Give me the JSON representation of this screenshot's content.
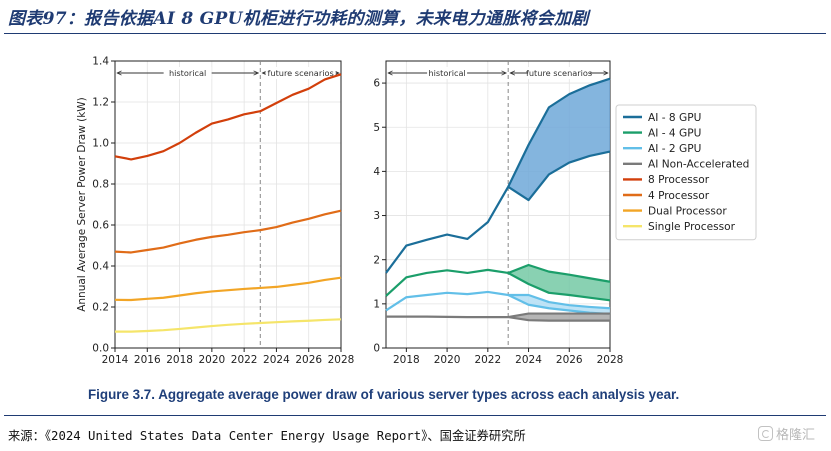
{
  "header": {
    "title": "图表97：报告依据AI 8 GPU机柜进行功耗的测算，未来电力通胀将会加剧"
  },
  "caption": "Figure 3.7.  Aggregate average power draw of various server types across each analysis year.",
  "footer": {
    "source": "来源：《2024 United States Data Center Energy Usage Report》、国金证券研究所",
    "watermark": "格隆汇"
  },
  "chart_data": [
    {
      "type": "line",
      "ylabel": "Annual Average Server Power Draw (kW)",
      "xlabel": "",
      "xlim": [
        2014,
        2028
      ],
      "ylim": [
        0,
        1.4
      ],
      "xticks": [
        2014,
        2016,
        2018,
        2020,
        2022,
        2024,
        2026,
        2028
      ],
      "yticks": [
        0.0,
        0.2,
        0.4,
        0.6,
        0.8,
        1.0,
        1.2,
        1.4
      ],
      "divider_x": 2023,
      "annotations": {
        "historical": "historical",
        "future": "future scenarios"
      },
      "grid": true,
      "x": [
        2014,
        2015,
        2016,
        2017,
        2018,
        2019,
        2020,
        2021,
        2022,
        2023,
        2024,
        2025,
        2026,
        2027,
        2028
      ],
      "series": [
        {
          "name": "8 Processor",
          "color": "#d23f0b",
          "values": [
            0.935,
            0.92,
            0.937,
            0.96,
            1.0,
            1.05,
            1.095,
            1.115,
            1.14,
            1.155,
            1.195,
            1.235,
            1.265,
            1.31,
            1.335
          ]
        },
        {
          "name": "4 Processor",
          "color": "#e06c18",
          "values": [
            0.47,
            0.466,
            0.478,
            0.49,
            0.51,
            0.528,
            0.542,
            0.552,
            0.565,
            0.575,
            0.59,
            0.612,
            0.63,
            0.652,
            0.67
          ]
        },
        {
          "name": "Dual Processor",
          "color": "#f2a526",
          "values": [
            0.235,
            0.234,
            0.24,
            0.245,
            0.256,
            0.267,
            0.276,
            0.282,
            0.288,
            0.293,
            0.298,
            0.308,
            0.318,
            0.332,
            0.343
          ]
        },
        {
          "name": "Single Processor",
          "color": "#f5e56a",
          "values": [
            0.08,
            0.08,
            0.083,
            0.087,
            0.093,
            0.1,
            0.107,
            0.113,
            0.118,
            0.122,
            0.126,
            0.13,
            0.133,
            0.137,
            0.14
          ]
        }
      ]
    },
    {
      "type": "line",
      "ylabel": "",
      "xlabel": "",
      "xlim": [
        2017,
        2028
      ],
      "ylim": [
        0,
        6.5
      ],
      "xticks": [
        2018,
        2020,
        2022,
        2024,
        2026,
        2028
      ],
      "yticks": [
        0,
        1,
        2,
        3,
        4,
        5,
        6
      ],
      "divider_x": 2023,
      "annotations": {
        "historical": "historical",
        "future": "future scenarios"
      },
      "grid": true,
      "legend": "right",
      "historical_x": [
        2017,
        2018,
        2019,
        2020,
        2021,
        2022,
        2023
      ],
      "future_x": [
        2023,
        2024,
        2025,
        2026,
        2027,
        2028
      ],
      "series": [
        {
          "name": "AI - 8 GPU",
          "color": "#1b6e99",
          "fill": "#6fa8d8",
          "historical": [
            1.7,
            2.32,
            2.45,
            2.57,
            2.47,
            2.85,
            3.65
          ],
          "upper": [
            3.65,
            4.6,
            5.45,
            5.75,
            5.95,
            6.1
          ],
          "lower": [
            3.65,
            3.35,
            3.93,
            4.2,
            4.35,
            4.45
          ]
        },
        {
          "name": "AI - 4 GPU",
          "color": "#1b9e6a",
          "fill": "#74c9a4",
          "historical": [
            1.18,
            1.6,
            1.7,
            1.76,
            1.7,
            1.77,
            1.7
          ],
          "upper": [
            1.7,
            1.88,
            1.73,
            1.66,
            1.58,
            1.5
          ],
          "lower": [
            1.7,
            1.45,
            1.25,
            1.2,
            1.14,
            1.08
          ]
        },
        {
          "name": "AI - 2 GPU",
          "color": "#62bfe8",
          "fill": "#b3def5",
          "historical": [
            0.85,
            1.15,
            1.2,
            1.25,
            1.22,
            1.27,
            1.2
          ],
          "upper": [
            1.2,
            1.2,
            1.04,
            0.97,
            0.93,
            0.9
          ],
          "lower": [
            1.2,
            0.98,
            0.9,
            0.85,
            0.8,
            0.77
          ]
        },
        {
          "name": "AI Non-Accelerated",
          "color": "#7a7a7a",
          "fill": "#a8a8a8",
          "historical": [
            0.71,
            0.71,
            0.71,
            0.705,
            0.7,
            0.7,
            0.7
          ],
          "upper": [
            0.7,
            0.78,
            0.78,
            0.78,
            0.78,
            0.78
          ],
          "lower": [
            0.7,
            0.63,
            0.62,
            0.62,
            0.62,
            0.62
          ]
        }
      ],
      "legend_entries": [
        {
          "name": "AI - 8 GPU",
          "color": "#1b6e99"
        },
        {
          "name": "AI - 4 GPU",
          "color": "#1b9e6a"
        },
        {
          "name": "AI - 2 GPU",
          "color": "#62bfe8"
        },
        {
          "name": "AI Non-Accelerated",
          "color": "#7a7a7a"
        },
        {
          "name": "8 Processor",
          "color": "#d23f0b"
        },
        {
          "name": "4 Processor",
          "color": "#e06c18"
        },
        {
          "name": "Dual Processor",
          "color": "#f2a526"
        },
        {
          "name": "Single Processor",
          "color": "#f5e56a"
        }
      ]
    }
  ]
}
